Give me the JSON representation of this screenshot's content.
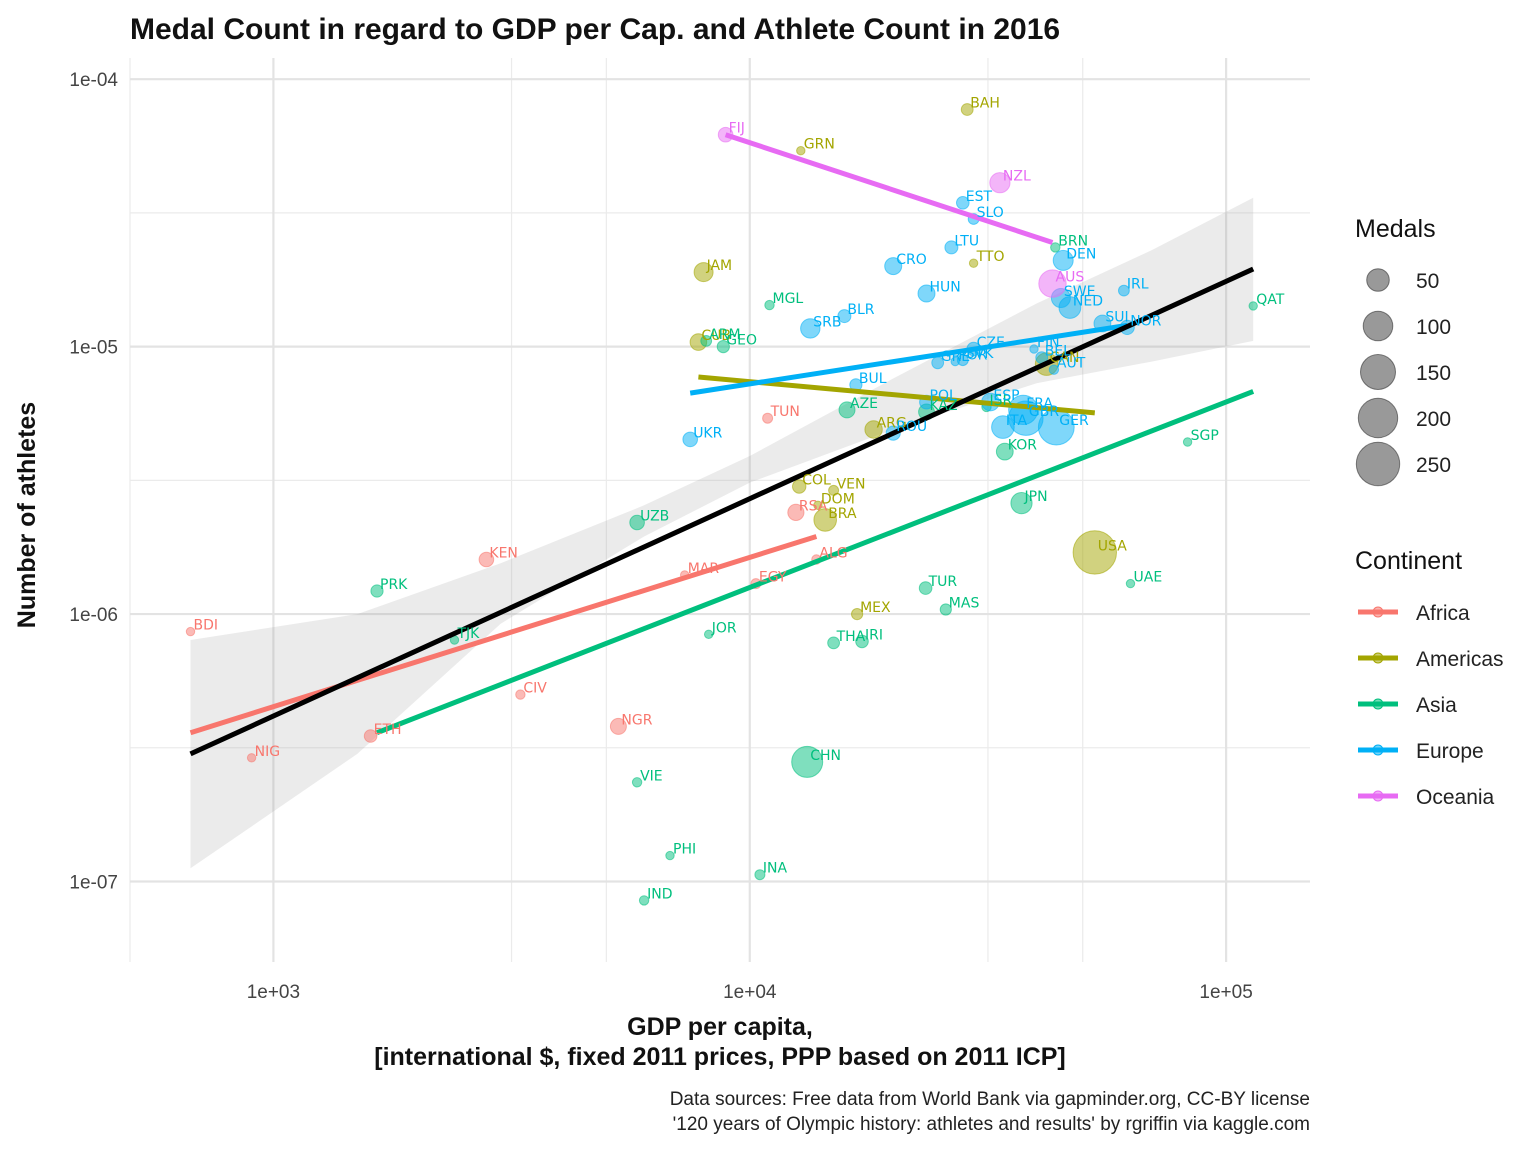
{
  "chart_data": {
    "type": "scatter",
    "title": "Medal Count in regard to GDP per Cap. and Athlete Count in 2016",
    "xlabel_lines": [
      "GDP per capita,",
      "[international $, fixed 2011 prices, PPP based on 2011 ICP]"
    ],
    "ylabel": "Number of athletes",
    "x_scale": "log10",
    "y_scale": "log10",
    "xlim": [
      500,
      150000
    ],
    "ylim": [
      5e-08,
      0.00012
    ],
    "x_ticks": [
      {
        "value": 1000,
        "label": "1e+03"
      },
      {
        "value": 10000,
        "label": "1e+04"
      },
      {
        "value": 100000,
        "label": "1e+05"
      }
    ],
    "y_ticks": [
      {
        "value": 1e-07,
        "label": "1e-07"
      },
      {
        "value": 1e-06,
        "label": "1e-06"
      },
      {
        "value": 1e-05,
        "label": "1e-05"
      },
      {
        "value": 0.0001,
        "label": "1e-04"
      }
    ],
    "grid": true,
    "caption_lines": [
      "Data sources: Free data from World Bank via gapminder.org, CC-BY license",
      "'120 years of Olympic history: athletes and results' by rgriffin via kaggle.com"
    ],
    "size_legend": {
      "title": "Medals",
      "values": [
        50,
        100,
        150,
        200,
        250
      ],
      "labels": [
        "50",
        "100",
        "150",
        "200",
        "250"
      ]
    },
    "color_legend": {
      "title": "Continent",
      "entries": [
        {
          "name": "Africa",
          "color": "#F8766D"
        },
        {
          "name": "Americas",
          "color": "#A3A500"
        },
        {
          "name": "Asia",
          "color": "#00BF7D"
        },
        {
          "name": "Europe",
          "color": "#00B0F6"
        },
        {
          "name": "Oceania",
          "color": "#E76BF3"
        }
      ]
    },
    "points": [
      {
        "label": "BDI",
        "continent": "Africa",
        "x": 670,
        "y": 8.6e-07,
        "medals": 1
      },
      {
        "label": "NIG",
        "continent": "Africa",
        "x": 900,
        "y": 2.9e-07,
        "medals": 1
      },
      {
        "label": "ETH",
        "continent": "Africa",
        "x": 1600,
        "y": 3.5e-07,
        "medals": 8
      },
      {
        "label": "KEN",
        "continent": "Africa",
        "x": 2800,
        "y": 1.6e-06,
        "medals": 13
      },
      {
        "label": "CIV",
        "continent": "Africa",
        "x": 3300,
        "y": 5e-07,
        "medals": 2
      },
      {
        "label": "NGR",
        "continent": "Africa",
        "x": 5300,
        "y": 3.8e-07,
        "medals": 18
      },
      {
        "label": "MAR",
        "continent": "Africa",
        "x": 7300,
        "y": 1.4e-06,
        "medals": 1
      },
      {
        "label": "EGY",
        "continent": "Africa",
        "x": 10300,
        "y": 1.3e-06,
        "medals": 3
      },
      {
        "label": "TUN",
        "continent": "Africa",
        "x": 10900,
        "y": 5.4e-06,
        "medals": 3
      },
      {
        "label": "RSA",
        "continent": "Africa",
        "x": 12500,
        "y": 2.4e-06,
        "medals": 19
      },
      {
        "label": "ALG",
        "continent": "Africa",
        "x": 13800,
        "y": 1.6e-06,
        "medals": 2
      },
      {
        "label": "JAM",
        "continent": "Americas",
        "x": 8000,
        "y": 1.9e-05,
        "medals": 30
      },
      {
        "label": "CUB",
        "continent": "Americas",
        "x": 7800,
        "y": 1.04e-05,
        "medals": 20
      },
      {
        "label": "GRN",
        "continent": "Americas",
        "x": 12800,
        "y": 5.4e-05,
        "medals": 1
      },
      {
        "label": "COL",
        "continent": "Americas",
        "x": 12700,
        "y": 3e-06,
        "medals": 10
      },
      {
        "label": "VEN",
        "continent": "Americas",
        "x": 15000,
        "y": 2.9e-06,
        "medals": 3
      },
      {
        "label": "DOM",
        "continent": "Americas",
        "x": 13900,
        "y": 2.55e-06,
        "medals": 1
      },
      {
        "label": "BRA",
        "continent": "Americas",
        "x": 14400,
        "y": 2.25e-06,
        "medals": 50
      },
      {
        "label": "MEX",
        "continent": "Americas",
        "x": 16800,
        "y": 1e-06,
        "medals": 5
      },
      {
        "label": "ARG",
        "continent": "Americas",
        "x": 18200,
        "y": 4.9e-06,
        "medals": 23
      },
      {
        "label": "BAH",
        "continent": "Americas",
        "x": 28600,
        "y": 7.7e-05,
        "medals": 6
      },
      {
        "label": "TTO",
        "continent": "Americas",
        "x": 29500,
        "y": 2.05e-05,
        "medals": 1
      },
      {
        "label": "CAN",
        "continent": "Americas",
        "x": 42000,
        "y": 8.6e-06,
        "medals": 50
      },
      {
        "label": "USA",
        "continent": "Americas",
        "x": 53000,
        "y": 1.7e-06,
        "medals": 250
      },
      {
        "label": "PRK",
        "continent": "Asia",
        "x": 1650,
        "y": 1.22e-06,
        "medals": 7
      },
      {
        "label": "TJK",
        "continent": "Asia",
        "x": 2400,
        "y": 8e-07,
        "medals": 1
      },
      {
        "label": "UZB",
        "continent": "Asia",
        "x": 5800,
        "y": 2.2e-06,
        "medals": 13
      },
      {
        "label": "VIE",
        "continent": "Asia",
        "x": 5800,
        "y": 2.35e-07,
        "medals": 2
      },
      {
        "label": "IND",
        "continent": "Asia",
        "x": 6000,
        "y": 8.5e-08,
        "medals": 2
      },
      {
        "label": "PHI",
        "continent": "Asia",
        "x": 6800,
        "y": 1.25e-07,
        "medals": 1
      },
      {
        "label": "JOR",
        "continent": "Asia",
        "x": 8200,
        "y": 8.4e-07,
        "medals": 1
      },
      {
        "label": "ARM",
        "continent": "Asia",
        "x": 8100,
        "y": 1.05e-05,
        "medals": 4
      },
      {
        "label": "GEO",
        "continent": "Asia",
        "x": 8800,
        "y": 1e-05,
        "medals": 7
      },
      {
        "label": "MGL",
        "continent": "Asia",
        "x": 11000,
        "y": 1.43e-05,
        "medals": 2
      },
      {
        "label": "INA",
        "continent": "Asia",
        "x": 10500,
        "y": 1.06e-07,
        "medals": 3
      },
      {
        "label": "CHN",
        "continent": "Asia",
        "x": 13200,
        "y": 2.8e-07,
        "medals": 113
      },
      {
        "label": "AZE",
        "continent": "Asia",
        "x": 16000,
        "y": 5.8e-06,
        "medals": 18
      },
      {
        "label": "THA",
        "continent": "Asia",
        "x": 15000,
        "y": 7.8e-07,
        "medals": 6
      },
      {
        "label": "IRI",
        "continent": "Asia",
        "x": 17200,
        "y": 7.9e-07,
        "medals": 8
      },
      {
        "label": "TUR",
        "continent": "Asia",
        "x": 23400,
        "y": 1.25e-06,
        "medals": 8
      },
      {
        "label": "KAZ",
        "continent": "Asia",
        "x": 23500,
        "y": 5.7e-06,
        "medals": 17
      },
      {
        "label": "MAS",
        "continent": "Asia",
        "x": 25800,
        "y": 1.04e-06,
        "medals": 5
      },
      {
        "label": "ISR",
        "continent": "Asia",
        "x": 31400,
        "y": 5.95e-06,
        "medals": 2
      },
      {
        "label": "KOR",
        "continent": "Asia",
        "x": 34300,
        "y": 4.05e-06,
        "medals": 21
      },
      {
        "label": "JPN",
        "continent": "Asia",
        "x": 37200,
        "y": 2.6e-06,
        "medals": 41
      },
      {
        "label": "BRN",
        "continent": "Asia",
        "x": 43800,
        "y": 2.35e-05,
        "medals": 2
      },
      {
        "label": "UAE",
        "continent": "Asia",
        "x": 63000,
        "y": 1.3e-06,
        "medals": 1
      },
      {
        "label": "SGP",
        "continent": "Asia",
        "x": 83000,
        "y": 4.4e-06,
        "medals": 1
      },
      {
        "label": "QAT",
        "continent": "Asia",
        "x": 114000,
        "y": 1.42e-05,
        "medals": 1
      },
      {
        "label": "UKR",
        "continent": "Europe",
        "x": 7500,
        "y": 4.5e-06,
        "medals": 13
      },
      {
        "label": "SRB",
        "continent": "Europe",
        "x": 13400,
        "y": 1.17e-05,
        "medals": 32
      },
      {
        "label": "BLR",
        "continent": "Europe",
        "x": 15800,
        "y": 1.3e-05,
        "medals": 9
      },
      {
        "label": "BUL",
        "continent": "Europe",
        "x": 16700,
        "y": 7.2e-06,
        "medals": 7
      },
      {
        "label": "ROU",
        "continent": "Europe",
        "x": 20000,
        "y": 4.75e-06,
        "medals": 12
      },
      {
        "label": "CRO",
        "continent": "Europe",
        "x": 20000,
        "y": 2e-05,
        "medals": 22
      },
      {
        "label": "HUN",
        "continent": "Europe",
        "x": 23500,
        "y": 1.58e-05,
        "medals": 22
      },
      {
        "label": "GRE",
        "continent": "Europe",
        "x": 24800,
        "y": 8.7e-06,
        "medals": 6
      },
      {
        "label": "POR",
        "continent": "Europe",
        "x": 27000,
        "y": 8.8e-06,
        "medals": 1
      },
      {
        "label": "POL",
        "continent": "Europe",
        "x": 23500,
        "y": 6.2e-06,
        "medals": 11
      },
      {
        "label": "LTU",
        "continent": "Europe",
        "x": 26500,
        "y": 2.35e-05,
        "medals": 9
      },
      {
        "label": "EST",
        "continent": "Europe",
        "x": 28000,
        "y": 3.45e-05,
        "medals": 8
      },
      {
        "label": "SLO",
        "continent": "Europe",
        "x": 29500,
        "y": 3e-05,
        "medals": 4
      },
      {
        "label": "SVK",
        "continent": "Europe",
        "x": 28000,
        "y": 8.9e-06,
        "medals": 4
      },
      {
        "label": "CZE",
        "continent": "Europe",
        "x": 29500,
        "y": 9.8e-06,
        "medals": 10
      },
      {
        "label": "ESP",
        "continent": "Europe",
        "x": 32000,
        "y": 6.2e-06,
        "medals": 24
      },
      {
        "label": "ITA",
        "continent": "Europe",
        "x": 34000,
        "y": 5e-06,
        "medals": 50
      },
      {
        "label": "FRA",
        "continent": "Europe",
        "x": 37500,
        "y": 5.8e-06,
        "medals": 96
      },
      {
        "label": "GBR",
        "continent": "Europe",
        "x": 38000,
        "y": 5.4e-06,
        "medals": 145
      },
      {
        "label": "FIN",
        "continent": "Europe",
        "x": 39500,
        "y": 9.8e-06,
        "medals": 1
      },
      {
        "label": "BEL",
        "continent": "Europe",
        "x": 41000,
        "y": 9.1e-06,
        "medals": 6
      },
      {
        "label": "AUT",
        "continent": "Europe",
        "x": 43500,
        "y": 8.2e-06,
        "medals": 2
      },
      {
        "label": "GER",
        "continent": "Europe",
        "x": 44000,
        "y": 5e-06,
        "medals": 159
      },
      {
        "label": "SWE",
        "continent": "Europe",
        "x": 45000,
        "y": 1.52e-05,
        "medals": 30
      },
      {
        "label": "NED",
        "continent": "Europe",
        "x": 47000,
        "y": 1.4e-05,
        "medals": 45
      },
      {
        "label": "DEN",
        "continent": "Europe",
        "x": 45500,
        "y": 2.1e-05,
        "medals": 35
      },
      {
        "label": "SUI",
        "continent": "Europe",
        "x": 55000,
        "y": 1.22e-05,
        "medals": 21
      },
      {
        "label": "NOR",
        "continent": "Europe",
        "x": 62000,
        "y": 1.18e-05,
        "medals": 12
      },
      {
        "label": "IRL",
        "continent": "Europe",
        "x": 61000,
        "y": 1.62e-05,
        "medals": 4
      },
      {
        "label": "FIJ",
        "continent": "Oceania",
        "x": 8900,
        "y": 6.2e-05,
        "medals": 13
      },
      {
        "label": "NZL",
        "continent": "Oceania",
        "x": 33500,
        "y": 4.1e-05,
        "medals": 36
      },
      {
        "label": "AUS",
        "continent": "Oceania",
        "x": 43200,
        "y": 1.72e-05,
        "medals": 82
      }
    ],
    "trend_lines": [
      {
        "name": "Africa",
        "x": [
          670,
          13800
        ],
        "y": [
          3.6e-07,
          1.95e-06
        ]
      },
      {
        "name": "Americas",
        "x": [
          7800,
          53000
        ],
        "y": [
          7.7e-06,
          5.65e-06
        ]
      },
      {
        "name": "Asia",
        "x": [
          1650,
          114000
        ],
        "y": [
          3.6e-07,
          6.8e-06
        ]
      },
      {
        "name": "Europe",
        "x": [
          7500,
          62000
        ],
        "y": [
          6.7e-06,
          1.2e-05
        ]
      },
      {
        "name": "Oceania",
        "x": [
          8900,
          43200
        ],
        "y": [
          6.2e-05,
          2.45e-05
        ]
      },
      {
        "name": "overall",
        "x": [
          670,
          114000
        ],
        "y": [
          3e-07,
          1.95e-05
        ]
      }
    ],
    "confidence_band": {
      "x": [
        670,
        1500,
        3000,
        6000,
        10000,
        20000,
        40000,
        70000,
        114000
      ],
      "lower": [
        1.12e-07,
        3e-07,
        9.2e-07,
        1.95e-06,
        3.1e-06,
        4.9e-06,
        7.3e-06,
        8.8e-06,
        1.05e-05
      ],
      "upper": [
        8e-07,
        1e-06,
        1.55e-06,
        2.55e-06,
        3.9e-06,
        7.6e-06,
        1.45e-05,
        2.3e-05,
        3.6e-05
      ]
    }
  }
}
